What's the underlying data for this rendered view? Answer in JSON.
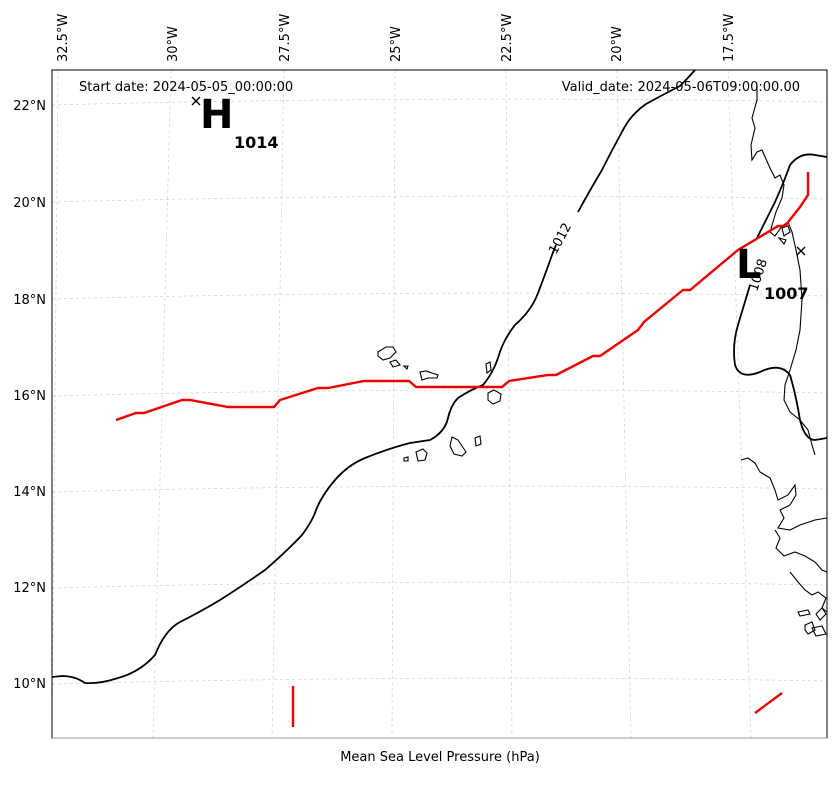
{
  "map": {
    "start_date": "Start date: 2024-05-05_00:00:00",
    "valid_date": "Valid_date: 2024-05-06T09:00:00.00",
    "xlabel": "Mean Sea Level Pressure (hPa)",
    "lon_ticks": [
      "32.5°W",
      "30°W",
      "27.5°W",
      "25°W",
      "22.5°W",
      "20°W",
      "17.5°W"
    ],
    "lat_ticks": [
      "22°N",
      "20°N",
      "18°N",
      "16°N",
      "14°N",
      "12°N",
      "10°N"
    ],
    "high": {
      "letter": "H",
      "value": "1014"
    },
    "low": {
      "letter": "L",
      "value": "1007"
    },
    "contour_labels": [
      "1012",
      "1008"
    ],
    "colors": {
      "storm_track": "#ee0000",
      "isobar": "#000000",
      "coastline": "#000000",
      "grid": "#cccccc"
    },
    "grid": "dashed"
  }
}
